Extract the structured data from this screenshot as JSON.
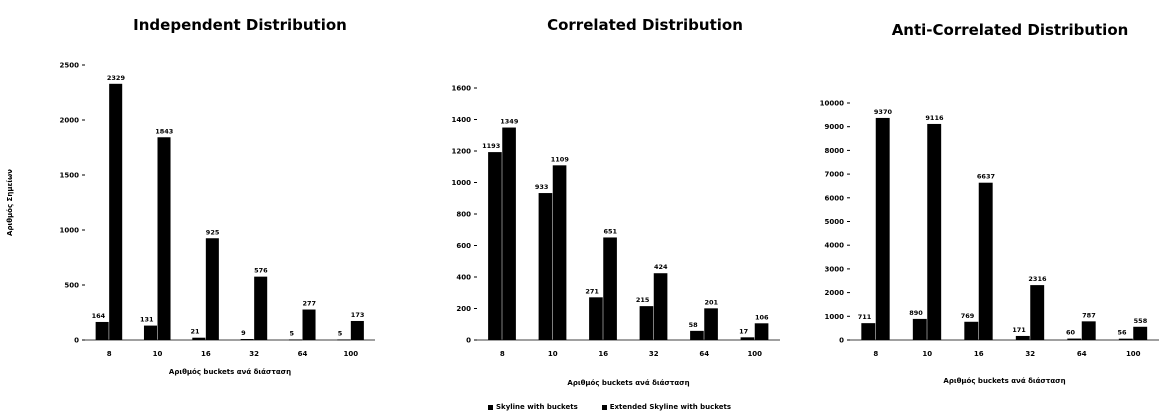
{
  "legend": {
    "items": [
      {
        "label": "Skyline with buckets",
        "color": "#000000"
      },
      {
        "label": "Extended Skyline with buckets",
        "color": "#000000"
      }
    ]
  },
  "chart_data": [
    {
      "type": "bar",
      "title": "Independent Distribution",
      "xlabel": "Αριθμός buckets ανά διάσταση",
      "ylabel": "Αριθμός Σημείων",
      "categories": [
        "8",
        "10",
        "16",
        "32",
        "64",
        "100"
      ],
      "series": [
        {
          "name": "Skyline with buckets",
          "values": [
            164,
            131,
            21,
            9,
            5,
            5
          ]
        },
        {
          "name": "Extended Skyline with buckets",
          "values": [
            2329,
            1843,
            925,
            576,
            277,
            173
          ]
        }
      ],
      "ylim": [
        0,
        2500
      ],
      "yticks": [
        "0",
        "500",
        "1000",
        "1500",
        "2000",
        "2500"
      ],
      "bar_labels": [
        [
          "164",
          "131",
          "21",
          "9",
          "5",
          "5"
        ],
        [
          "2329",
          "1843",
          "925",
          "576",
          "277",
          "173"
        ]
      ],
      "grid": false,
      "legend": "bottom"
    },
    {
      "type": "bar",
      "title": "Correlated Distribution",
      "xlabel": "Αριθμός buckets ανά διάσταση",
      "ylabel": "",
      "categories": [
        "8",
        "10",
        "16",
        "32",
        "64",
        "100"
      ],
      "series": [
        {
          "name": "Skyline with buckets",
          "values": [
            1193,
            933,
            271,
            215,
            58,
            17
          ]
        },
        {
          "name": "Extended Skyline with buckets",
          "values": [
            1349,
            1109,
            651,
            424,
            201,
            106
          ]
        }
      ],
      "ylim": [
        0,
        1600
      ],
      "yticks": [
        "0",
        "200",
        "400",
        "600",
        "800",
        "1000",
        "1200",
        "1400",
        "1600"
      ],
      "bar_labels": [
        [
          "1193",
          "933",
          "271",
          "215",
          "58",
          "17"
        ],
        [
          "1349",
          "1109",
          "651",
          "424",
          "201",
          "106"
        ]
      ],
      "grid": false,
      "legend": "bottom"
    },
    {
      "type": "bar",
      "title": "Anti-Correlated Distribution",
      "xlabel": "Αριθμός buckets ανά διάσταση",
      "ylabel": "",
      "categories": [
        "8",
        "10",
        "16",
        "32",
        "64",
        "100"
      ],
      "series": [
        {
          "name": "Skyline with buckets",
          "values": [
            711,
            890,
            769,
            171,
            60,
            56
          ]
        },
        {
          "name": "Extended Skyline with buckets",
          "values": [
            9370,
            9116,
            6637,
            2316,
            787,
            558
          ]
        }
      ],
      "ylim": [
        0,
        10000
      ],
      "yticks": [
        "0",
        "1000",
        "2000",
        "3000",
        "4000",
        "5000",
        "6000",
        "7000",
        "8000",
        "9000",
        "10000"
      ],
      "bar_labels": [
        [
          "711",
          "890",
          "769",
          "171",
          "60",
          "56"
        ],
        [
          "9370",
          "9116",
          "6637",
          "2316",
          "787",
          "558"
        ]
      ],
      "grid": false,
      "legend": "bottom"
    }
  ]
}
